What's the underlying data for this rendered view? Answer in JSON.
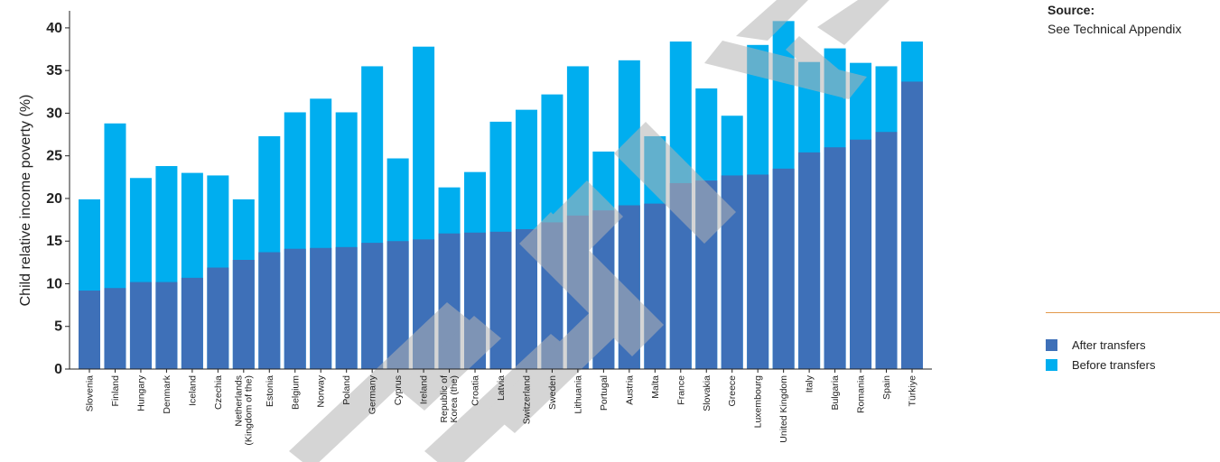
{
  "chart_data": {
    "type": "bar",
    "ylabel": "Child relative income poverty (%)",
    "ylim": [
      0,
      42
    ],
    "yticks": [
      0,
      5,
      10,
      15,
      20,
      25,
      30,
      35,
      40
    ],
    "grid": false,
    "legend_placement": "right",
    "categories": [
      "Slovenia",
      "Finland",
      "Hungary",
      "Denmark",
      "Iceland",
      "Czechia",
      "Netherlands (Kingdom of the)",
      "Estonia",
      "Belgium",
      "Norway",
      "Poland",
      "Germany",
      "Cyprus",
      "Ireland",
      "Republic of Korea (the)",
      "Croatia",
      "Latvia",
      "Switzerland",
      "Sweden",
      "Lithuania",
      "Portugal",
      "Austria",
      "Malta",
      "France",
      "Slovakia",
      "Greece",
      "Luxembourg",
      "United Kingdom",
      "Italy",
      "Bulgaria",
      "Romania",
      "Spain",
      "Türkiye"
    ],
    "series": [
      {
        "name": "After transfers",
        "color": "#3e70b8",
        "values": [
          9.2,
          9.5,
          10.2,
          10.2,
          10.7,
          11.9,
          12.8,
          13.7,
          14.1,
          14.2,
          14.3,
          14.8,
          15.0,
          15.2,
          15.9,
          16.0,
          16.1,
          16.4,
          17.2,
          18.0,
          18.6,
          19.2,
          19.4,
          21.8,
          22.1,
          22.7,
          22.8,
          23.5,
          25.4,
          26.0,
          26.9,
          27.8,
          33.7
        ]
      },
      {
        "name": "Before transfers",
        "color": "#00aeef",
        "values": [
          19.9,
          28.8,
          22.4,
          23.8,
          23.0,
          22.7,
          19.9,
          27.3,
          30.1,
          31.7,
          30.1,
          35.5,
          24.7,
          37.8,
          21.3,
          23.1,
          29.0,
          30.4,
          32.2,
          35.5,
          25.5,
          36.2,
          27.3,
          38.4,
          32.9,
          29.7,
          38.0,
          40.8,
          36.0,
          37.6,
          35.9,
          35.5,
          38.4
        ]
      }
    ]
  },
  "source": {
    "title": "Source:",
    "text": "See Technical Appendix"
  }
}
